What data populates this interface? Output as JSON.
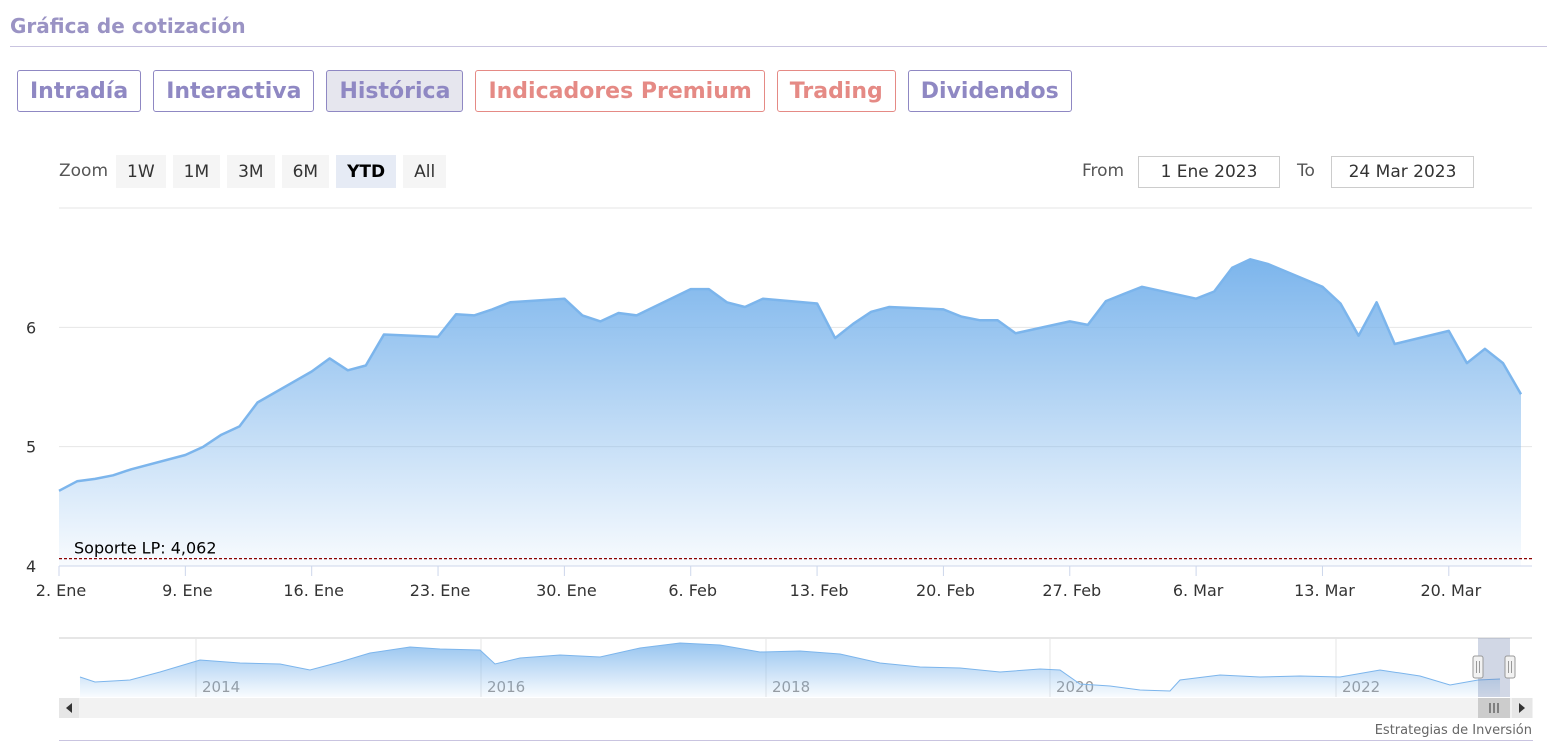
{
  "section_title": "Gráfica de cotización",
  "tabs": [
    {
      "label": "Intradía",
      "active": false,
      "accent": false
    },
    {
      "label": "Interactiva",
      "active": false,
      "accent": false
    },
    {
      "label": "Histórica",
      "active": true,
      "accent": false
    },
    {
      "label": "Indicadores Premium",
      "active": false,
      "accent": true
    },
    {
      "label": "Trading",
      "active": false,
      "accent": true
    },
    {
      "label": "Dividendos",
      "active": false,
      "accent": false
    }
  ],
  "zoom": {
    "label": "Zoom",
    "buttons": [
      "1W",
      "1M",
      "3M",
      "6M",
      "YTD",
      "All"
    ],
    "selected": "YTD"
  },
  "range": {
    "from_label": "From",
    "from_value": "1 Ene 2023",
    "to_label": "To",
    "to_value": "24 Mar 2023"
  },
  "colors": {
    "accent_purple": "#8f88c3",
    "accent_red": "#e58a85",
    "series_line": "#7cb5ec",
    "support_line": "#8b0000"
  },
  "credit": "Estrategias de Inversión",
  "chart_data": {
    "type": "area",
    "xlabel": "",
    "ylabel": "",
    "ylim": [
      4,
      7
    ],
    "yticks": [
      "4",
      "5",
      "6"
    ],
    "xticks": [
      "2. Ene",
      "9. Ene",
      "16. Ene",
      "23. Ene",
      "30. Ene",
      "6. Feb",
      "13. Feb",
      "20. Feb",
      "27. Feb",
      "6. Mar",
      "13. Mar",
      "20. Mar"
    ],
    "grid": true,
    "x": [
      "2023-01-02",
      "2023-01-03",
      "2023-01-04",
      "2023-01-05",
      "2023-01-06",
      "2023-01-09",
      "2023-01-10",
      "2023-01-11",
      "2023-01-12",
      "2023-01-13",
      "2023-01-16",
      "2023-01-17",
      "2023-01-18",
      "2023-01-19",
      "2023-01-20",
      "2023-01-23",
      "2023-01-24",
      "2023-01-25",
      "2023-01-26",
      "2023-01-27",
      "2023-01-30",
      "2023-01-31",
      "2023-02-01",
      "2023-02-02",
      "2023-02-03",
      "2023-02-06",
      "2023-02-07",
      "2023-02-08",
      "2023-02-09",
      "2023-02-10",
      "2023-02-13",
      "2023-02-14",
      "2023-02-15",
      "2023-02-16",
      "2023-02-17",
      "2023-02-20",
      "2023-02-21",
      "2023-02-22",
      "2023-02-23",
      "2023-02-24",
      "2023-02-27",
      "2023-02-28",
      "2023-03-01",
      "2023-03-02",
      "2023-03-03",
      "2023-03-06",
      "2023-03-07",
      "2023-03-08",
      "2023-03-09",
      "2023-03-10",
      "2023-03-13",
      "2023-03-14",
      "2023-03-15",
      "2023-03-16",
      "2023-03-17",
      "2023-03-20",
      "2023-03-21",
      "2023-03-22",
      "2023-03-23",
      "2023-03-24"
    ],
    "series": [
      {
        "values": [
          4.63,
          4.71,
          4.73,
          4.76,
          4.81,
          4.93,
          5.0,
          5.1,
          5.17,
          5.37,
          5.63,
          5.74,
          5.64,
          5.68,
          5.94,
          5.92,
          6.11,
          6.1,
          6.15,
          6.21,
          6.24,
          6.1,
          6.05,
          6.12,
          6.1,
          6.32,
          6.32,
          6.21,
          6.17,
          6.24,
          6.2,
          5.91,
          6.03,
          6.13,
          6.17,
          6.15,
          6.09,
          6.06,
          6.06,
          5.95,
          6.05,
          6.02,
          6.22,
          6.28,
          6.34,
          6.24,
          6.3,
          6.5,
          6.57,
          6.53,
          6.34,
          6.2,
          5.93,
          6.21,
          5.86,
          5.97,
          5.7,
          5.82,
          5.7,
          5.44
        ]
      }
    ],
    "annotations": [
      {
        "label": "Soporte LP: 4,062",
        "y": 4.062,
        "style": "dashed"
      }
    ],
    "navigator": {
      "xticks": [
        "2014",
        "2016",
        "2018",
        "2020",
        "2022"
      ],
      "selected_range": "YTD"
    }
  }
}
